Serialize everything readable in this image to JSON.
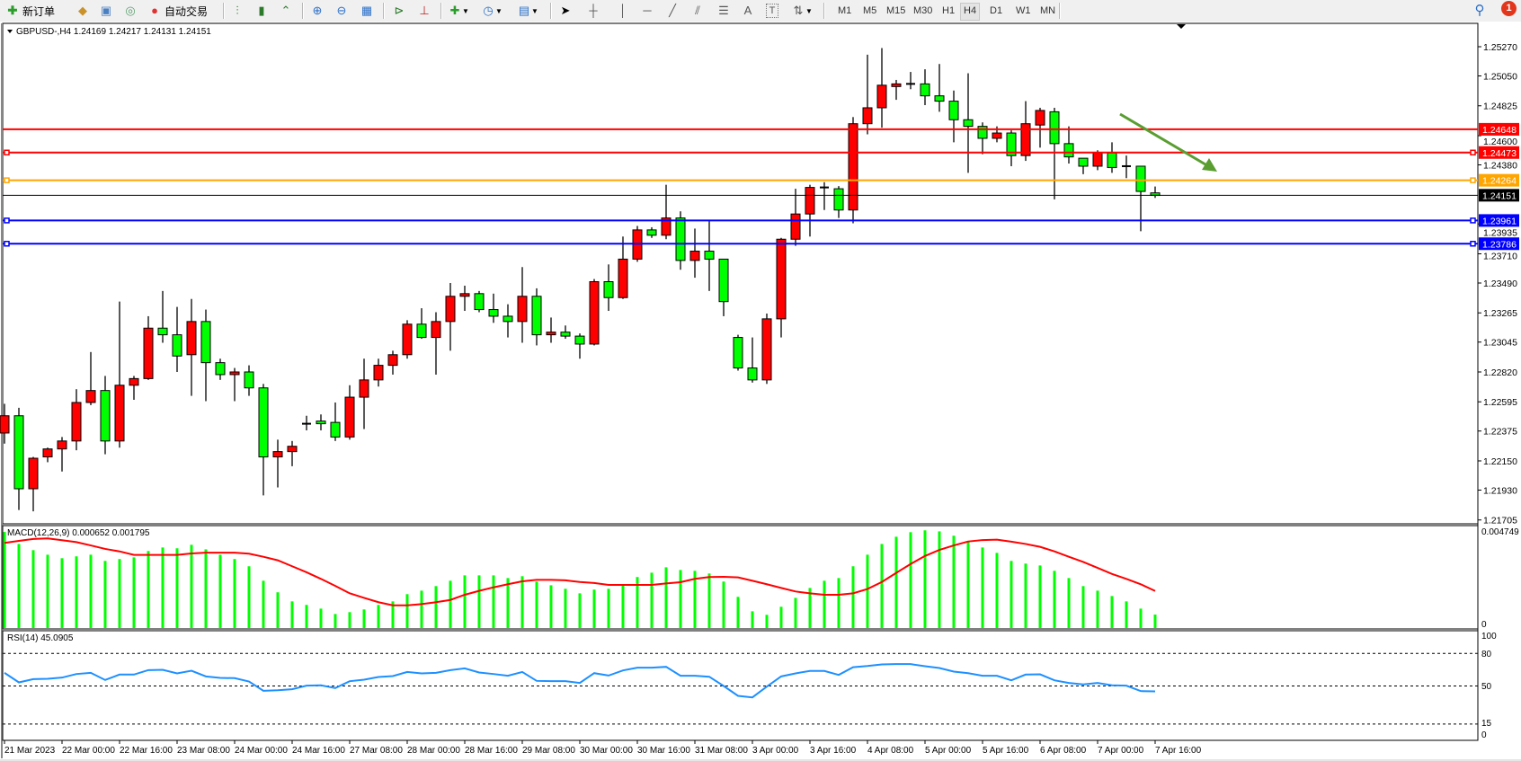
{
  "toolbar": {
    "new_order": "新订单",
    "auto_trading": "自动交易",
    "periods": [
      "M1",
      "M5",
      "M15",
      "M30",
      "H1",
      "H4",
      "D1",
      "W1",
      "MN"
    ],
    "active_period": "H4",
    "notification_count": "1",
    "text_tool": "A"
  },
  "chart": {
    "symbol_info": "GBPUSD-,H4  1.24169 1.24217 1.24131 1.24151"
  },
  "chart_data": [
    {
      "type": "candlestick",
      "symbol": "GBPUSD-",
      "timeframe": "H4",
      "up_color": "#ff0000",
      "down_color": "#00ff00",
      "x_labels": [
        "21 Mar 2023",
        "22 Mar 00:00",
        "22 Mar 16:00",
        "23 Mar 08:00",
        "24 Mar 00:00",
        "24 Mar 16:00",
        "27 Mar 08:00",
        "28 Mar 00:00",
        "28 Mar 16:00",
        "29 Mar 08:00",
        "30 Mar 00:00",
        "30 Mar 16:00",
        "31 Mar 08:00",
        "3 Apr 00:00",
        "3 Apr 16:00",
        "4 Apr 08:00",
        "5 Apr 00:00",
        "5 Apr 16:00",
        "6 Apr 08:00",
        "7 Apr 00:00",
        "7 Apr 16:00"
      ],
      "price_ticks": [
        "1.25270",
        "1.25050",
        "1.24825",
        "1.24600",
        "1.24380",
        "1.23935",
        "1.23710",
        "1.23490",
        "1.23265",
        "1.23045",
        "1.22820",
        "1.22595",
        "1.22375",
        "1.22150",
        "1.21930",
        "1.21705"
      ],
      "ylim": [
        1.21705,
        1.2527
      ],
      "ohlc": [
        [
          1.2236,
          1.2258,
          1.2228,
          1.2249
        ],
        [
          1.2249,
          1.2255,
          1.2178,
          1.2194
        ],
        [
          1.2194,
          1.2218,
          1.2177,
          1.2217
        ],
        [
          1.2218,
          1.2225,
          1.2214,
          1.2224
        ],
        [
          1.2224,
          1.2233,
          1.2207,
          1.223
        ],
        [
          1.223,
          1.2269,
          1.2223,
          1.2259
        ],
        [
          1.2259,
          1.2297,
          1.2257,
          1.2268
        ],
        [
          1.2268,
          1.2279,
          1.222,
          1.223
        ],
        [
          1.223,
          1.2335,
          1.2225,
          1.2272
        ],
        [
          1.2272,
          1.2279,
          1.2261,
          1.2277
        ],
        [
          1.2277,
          1.2324,
          1.2276,
          1.2315
        ],
        [
          1.2315,
          1.2343,
          1.2304,
          1.231
        ],
        [
          1.231,
          1.2331,
          1.2282,
          1.2294
        ],
        [
          1.2295,
          1.2337,
          1.2264,
          1.232
        ],
        [
          1.232,
          1.2329,
          1.226,
          1.2289
        ],
        [
          1.2289,
          1.2292,
          1.2276,
          1.228
        ],
        [
          1.228,
          1.2285,
          1.226,
          1.2282
        ],
        [
          1.2282,
          1.2287,
          1.2264,
          1.227
        ],
        [
          1.227,
          1.2273,
          1.2189,
          1.2218
        ],
        [
          1.2218,
          1.2231,
          1.2195,
          1.2222
        ],
        [
          1.2222,
          1.223,
          1.2211,
          1.2226
        ],
        [
          1.2242,
          1.2249,
          1.2238,
          1.2243
        ],
        [
          1.2245,
          1.225,
          1.2238,
          1.2243
        ],
        [
          1.2244,
          1.2259,
          1.223,
          1.2233
        ],
        [
          1.2233,
          1.2272,
          1.2231,
          1.2263
        ],
        [
          1.2263,
          1.2292,
          1.2239,
          1.2276
        ],
        [
          1.2276,
          1.2292,
          1.2271,
          1.2287
        ],
        [
          1.2287,
          1.2298,
          1.228,
          1.2295
        ],
        [
          1.2295,
          1.2321,
          1.2292,
          1.2318
        ],
        [
          1.2318,
          1.233,
          1.2307,
          1.2308
        ],
        [
          1.2308,
          1.2327,
          1.228,
          1.232
        ],
        [
          1.232,
          1.2349,
          1.2298,
          1.2339
        ],
        [
          1.2339,
          1.2347,
          1.2328,
          1.2341
        ],
        [
          1.2341,
          1.2343,
          1.2327,
          1.2329
        ],
        [
          1.2329,
          1.2341,
          1.2319,
          1.2324
        ],
        [
          1.2324,
          1.2333,
          1.2308,
          1.232
        ],
        [
          1.232,
          1.2361,
          1.2304,
          1.2339
        ],
        [
          1.2339,
          1.2345,
          1.2302,
          1.231
        ],
        [
          1.231,
          1.2323,
          1.2304,
          1.2312
        ],
        [
          1.2312,
          1.2317,
          1.2307,
          1.2309
        ],
        [
          1.2309,
          1.2311,
          1.2292,
          1.2303
        ],
        [
          1.2303,
          1.2352,
          1.2302,
          1.235
        ],
        [
          1.235,
          1.2363,
          1.2328,
          1.2338
        ],
        [
          1.2338,
          1.2384,
          1.2337,
          1.2367
        ],
        [
          1.2367,
          1.2392,
          1.2365,
          1.2389
        ],
        [
          1.2389,
          1.2391,
          1.2383,
          1.2385
        ],
        [
          1.2385,
          1.2423,
          1.2382,
          1.2398
        ],
        [
          1.2398,
          1.2403,
          1.2359,
          1.2366
        ],
        [
          1.2366,
          1.239,
          1.2353,
          1.2373
        ],
        [
          1.2373,
          1.2396,
          1.2343,
          1.2367
        ],
        [
          1.2367,
          1.2367,
          1.2324,
          1.2335
        ],
        [
          1.2308,
          1.231,
          1.2283,
          1.2285
        ],
        [
          1.2285,
          1.2308,
          1.2274,
          1.2276
        ],
        [
          1.2276,
          1.2326,
          1.2273,
          1.2322
        ],
        [
          1.2322,
          1.2383,
          1.2308,
          1.2382
        ],
        [
          1.2382,
          1.242,
          1.2377,
          1.2401
        ],
        [
          1.2401,
          1.2423,
          1.2384,
          1.2421
        ],
        [
          1.2421,
          1.2425,
          1.2404,
          1.242
        ],
        [
          1.242,
          1.2422,
          1.2398,
          1.2404
        ],
        [
          1.2404,
          1.2474,
          1.2394,
          1.2469
        ],
        [
          1.2469,
          1.2521,
          1.2461,
          1.2481
        ],
        [
          1.2481,
          1.2526,
          1.2466,
          1.2498
        ],
        [
          1.2497,
          1.2502,
          1.2487,
          1.2499
        ],
        [
          1.2499,
          1.2508,
          1.2495,
          1.2499
        ],
        [
          1.2499,
          1.251,
          1.2483,
          1.249
        ],
        [
          1.249,
          1.2514,
          1.2478,
          1.2486
        ],
        [
          1.2486,
          1.2494,
          1.2455,
          1.2472
        ],
        [
          1.2472,
          1.2507,
          1.2432,
          1.2467
        ],
        [
          1.2467,
          1.247,
          1.2446,
          1.2458
        ],
        [
          1.2458,
          1.2467,
          1.2455,
          1.2462
        ],
        [
          1.2462,
          1.2464,
          1.2437,
          1.2445
        ],
        [
          1.2445,
          1.2486,
          1.2441,
          1.2469
        ],
        [
          1.2468,
          1.2481,
          1.2451,
          1.2479
        ],
        [
          1.2478,
          1.2481,
          1.2412,
          1.2454
        ],
        [
          1.2454,
          1.2467,
          1.2439,
          1.2444
        ],
        [
          1.2443,
          1.2443,
          1.2431,
          1.2437
        ],
        [
          1.2437,
          1.2449,
          1.2434,
          1.2447
        ],
        [
          1.2447,
          1.2455,
          1.2432,
          1.2436
        ],
        [
          1.2436,
          1.2445,
          1.2428,
          1.2437
        ],
        [
          1.2437,
          1.2437,
          1.2388,
          1.2418
        ],
        [
          1.24169,
          1.24217,
          1.24131,
          1.24151
        ]
      ],
      "horizontal_lines": [
        {
          "price": 1.24648,
          "label": "1.24648",
          "color": "#ff0000",
          "selected": false
        },
        {
          "price": 1.24473,
          "label": "1.24473",
          "color": "#ff0000",
          "selected": true
        },
        {
          "price": 1.24264,
          "label": "1.24264",
          "color": "#ffa500",
          "selected": true
        },
        {
          "price": 1.23961,
          "label": "1.23961",
          "color": "#0000ff",
          "selected": true
        },
        {
          "price": 1.23786,
          "label": "1.23786",
          "color": "#0000ff",
          "selected": true
        }
      ],
      "current_price": {
        "price": 1.24151,
        "label": "1.24151",
        "color": "#000000"
      },
      "trend_arrow": {
        "color": "#5a9e32",
        "direction": "down"
      }
    },
    {
      "type": "bar",
      "title": "MACD(12,26,9) 0.000652 0.001795",
      "axis_labels": [
        "0.004749",
        "0"
      ],
      "ylim": [
        0,
        0.004749
      ],
      "histogram_color": "#00ff00",
      "signal_color": "#ff0000",
      "histogram": [
        0.00465,
        0.00407,
        0.00377,
        0.00355,
        0.00338,
        0.00347,
        0.00355,
        0.00325,
        0.00334,
        0.00342,
        0.00373,
        0.0039,
        0.00386,
        0.00403,
        0.00381,
        0.00355,
        0.00334,
        0.00299,
        0.00229,
        0.00173,
        0.00129,
        0.00112,
        0.00094,
        0.00068,
        0.00077,
        0.0009,
        0.00112,
        0.00129,
        0.00164,
        0.00181,
        0.00203,
        0.00229,
        0.00255,
        0.00255,
        0.00255,
        0.00242,
        0.00251,
        0.00225,
        0.00207,
        0.0019,
        0.00168,
        0.00186,
        0.0019,
        0.00207,
        0.00247,
        0.00268,
        0.00294,
        0.00281,
        0.00277,
        0.00264,
        0.00225,
        0.00151,
        0.00081,
        0.00064,
        0.00103,
        0.00146,
        0.00194,
        0.00229,
        0.00242,
        0.00299,
        0.00355,
        0.00407,
        0.00442,
        0.00464,
        0.00473,
        0.00468,
        0.00447,
        0.00421,
        0.0039,
        0.00364,
        0.00325,
        0.00312,
        0.00303,
        0.00277,
        0.00242,
        0.00203,
        0.00181,
        0.00155,
        0.00129,
        0.00094,
        0.000652
      ],
      "signal": [
        0.00412,
        0.00422,
        0.00431,
        0.00434,
        0.00425,
        0.00416,
        0.004,
        0.00383,
        0.00371,
        0.00354,
        0.00354,
        0.00354,
        0.00354,
        0.00361,
        0.00365,
        0.00365,
        0.00365,
        0.0036,
        0.00345,
        0.00328,
        0.00299,
        0.0027,
        0.00238,
        0.00204,
        0.00168,
        0.00146,
        0.00125,
        0.0011,
        0.0011,
        0.00116,
        0.00125,
        0.00136,
        0.00161,
        0.0018,
        0.00197,
        0.00212,
        0.00226,
        0.00233,
        0.00233,
        0.00231,
        0.00223,
        0.00218,
        0.00209,
        0.00209,
        0.00209,
        0.00209,
        0.00216,
        0.00222,
        0.00238,
        0.00247,
        0.00248,
        0.00245,
        0.00229,
        0.00212,
        0.00194,
        0.00177,
        0.00168,
        0.00161,
        0.00161,
        0.00168,
        0.00189,
        0.00223,
        0.00267,
        0.0031,
        0.00349,
        0.00378,
        0.004,
        0.00419,
        0.00426,
        0.00428,
        0.00418,
        0.00407,
        0.00393,
        0.00371,
        0.00345,
        0.0032,
        0.00291,
        0.00262,
        0.00238,
        0.00212,
        0.001795
      ]
    },
    {
      "type": "line",
      "title": "RSI(14) 45.0905",
      "axis_labels": [
        "100",
        "80",
        "50",
        "15",
        "0"
      ],
      "levels": [
        80,
        50,
        15
      ],
      "ylim": [
        0,
        100
      ],
      "line_color": "#1e90ff",
      "values": [
        62.1,
        53.3,
        56.3,
        56.6,
        57.7,
        61.0,
        62.1,
        55.5,
        60.5,
        60.5,
        64.6,
        64.9,
        61.6,
        64.0,
        58.8,
        57.4,
        57.2,
        54.1,
        45.6,
        46.1,
        47.0,
        50.3,
        50.6,
        48.1,
        54.4,
        55.8,
        58.3,
        59.1,
        62.9,
        61.6,
        62.1,
        64.6,
        66.2,
        62.4,
        61.0,
        59.4,
        62.9,
        54.7,
        54.4,
        54.4,
        52.8,
        61.8,
        59.6,
        64.3,
        66.8,
        66.8,
        67.6,
        59.4,
        59.4,
        58.5,
        50.0,
        40.9,
        39.5,
        49.4,
        58.8,
        61.6,
        63.8,
        63.8,
        60.2,
        67.3,
        68.4,
        69.8,
        70.1,
        70.1,
        68.2,
        66.5,
        63.2,
        61.8,
        59.4,
        59.4,
        55.2,
        60.5,
        60.7,
        55.2,
        52.8,
        51.4,
        52.8,
        50.6,
        50.3,
        45.3,
        45.09
      ]
    }
  ]
}
